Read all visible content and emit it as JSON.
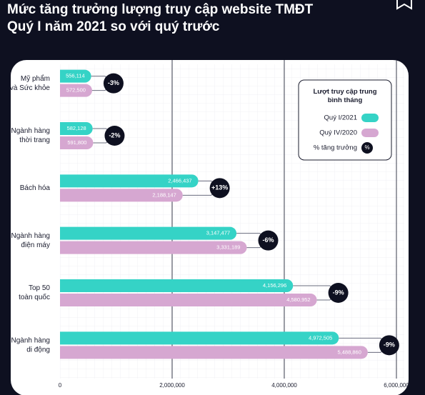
{
  "chart_data": {
    "type": "bar",
    "orientation": "horizontal",
    "title": [
      "Mức tăng trưởng lượng truy cập website TMĐT",
      "Quý I năm 2021 so với quý trước"
    ],
    "categories": [
      [
        "Mỹ phẩm",
        "và Sức khỏe"
      ],
      [
        "Ngành hàng",
        "thời trang"
      ],
      [
        "Bách hóa"
      ],
      [
        "Ngành hàng",
        "điện máy"
      ],
      [
        "Top 50",
        "toàn quốc"
      ],
      [
        "Ngành hàng",
        "di động"
      ]
    ],
    "series": [
      {
        "name": "Quý I/2021",
        "color": "#35d3c6",
        "values": [
          556114,
          582128,
          2466437,
          3147477,
          4156296,
          4972505
        ],
        "value_labels": [
          "556,114",
          "582,128",
          "2,466,437",
          "3,147,477",
          "4,156,296",
          "4,972,505"
        ]
      },
      {
        "name": "Quý IV/2020",
        "color": "#d6a7d1",
        "values": [
          572500,
          591800,
          2188147,
          3331189,
          4580952,
          5488860
        ],
        "value_labels": [
          "572,500",
          "591,800",
          "2,188,147",
          "3,331,189",
          "4,580,952",
          "5,488,860"
        ]
      }
    ],
    "growth": {
      "name": "% tăng trưởng",
      "symbol": "%",
      "color": "#0e1020",
      "values": [
        -3,
        -2,
        13,
        -6,
        -9,
        -9
      ],
      "value_labels": [
        "-3%",
        "-2%",
        "+13%",
        "-6%",
        "-9%",
        "-9%"
      ]
    },
    "legend_title": "Lượt truy cập trung bình tháng",
    "legend": "top-right",
    "xlim": [
      0,
      6000000
    ],
    "xticks": [
      {
        "value": 0,
        "label": "0"
      },
      {
        "value": 2000000,
        "label": "2,000,000"
      },
      {
        "value": 4000000,
        "label": "4,000,000"
      },
      {
        "value": 6000000,
        "label": "6,000,000"
      }
    ]
  }
}
